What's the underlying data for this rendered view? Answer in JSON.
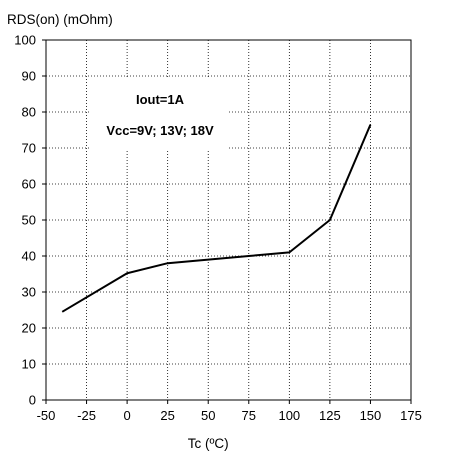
{
  "chart_data": {
    "type": "line",
    "ylabel": "RDS(on) (mOhm)",
    "xlabel": "Tc (ºC)",
    "xlim": [
      -50,
      175
    ],
    "ylim": [
      0,
      100
    ],
    "x_ticks": [
      -50,
      -25,
      0,
      25,
      50,
      75,
      100,
      125,
      150,
      175
    ],
    "y_ticks": [
      0,
      10,
      20,
      30,
      40,
      50,
      60,
      70,
      80,
      90,
      100
    ],
    "grid": true,
    "annotation_lines": [
      "Iout=1A",
      "Vcc=9V; 13V; 18V"
    ],
    "series": [
      {
        "x": [
          -40,
          0,
          25,
          75,
          100,
          125,
          150
        ],
        "values": [
          24.5,
          35.2,
          38,
          40,
          41,
          50,
          76.5
        ]
      }
    ],
    "colors": {
      "line": "#000000",
      "grid": "#000000",
      "background": "#ffffff"
    }
  }
}
